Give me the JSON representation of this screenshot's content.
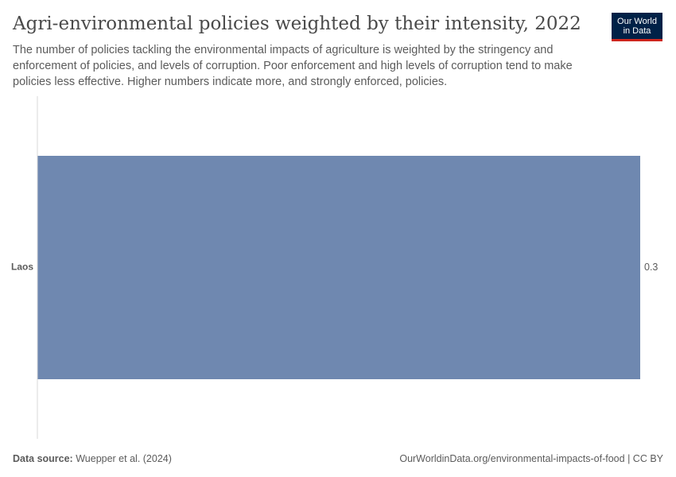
{
  "header": {
    "title": "Agri-environmental policies weighted by their intensity, 2022",
    "subtitle": "The number of policies tackling the environmental impacts of agriculture is weighted by the stringency and enforcement of policies, and levels of corruption. Poor enforcement and high levels of corruption tend to make policies less effective. Higher numbers indicate more, and strongly enforced, policies."
  },
  "logo": {
    "line1": "Our World",
    "line2": "in Data"
  },
  "chart_data": {
    "type": "bar",
    "orientation": "horizontal",
    "categories": [
      "Laos"
    ],
    "values": [
      0.3
    ],
    "value_labels": [
      "0.3"
    ],
    "xlim": [
      0,
      0.3
    ],
    "grid": false,
    "bar_color": "#6f88b0",
    "axis_color": "#dadada"
  },
  "footer": {
    "source_label": "Data source:",
    "source_value": "Wuepper et al. (2024)",
    "link": "OurWorldinData.org/environmental-impacts-of-food",
    "license": "CC BY",
    "separator": "|"
  }
}
